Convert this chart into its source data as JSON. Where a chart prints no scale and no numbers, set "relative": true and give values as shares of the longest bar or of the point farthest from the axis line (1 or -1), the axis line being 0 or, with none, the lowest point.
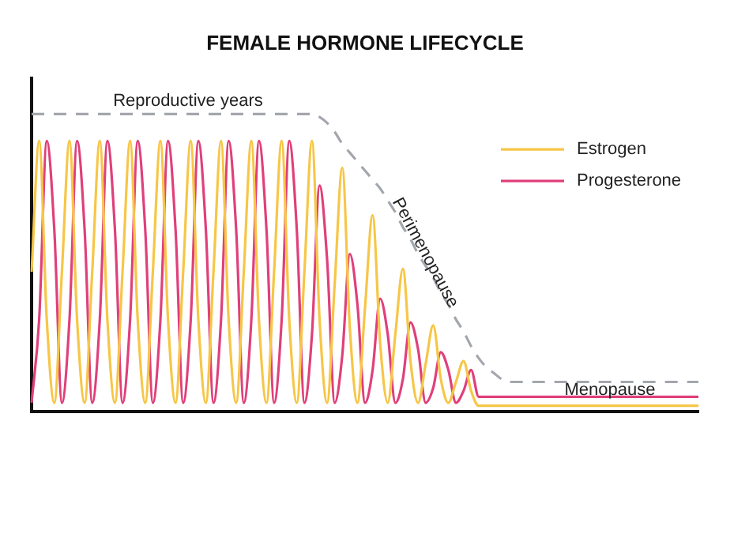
{
  "chart_data": {
    "type": "line",
    "title": "FEMALE HORMONE LIFECYCLE",
    "relative": true,
    "grid": false,
    "legend": "top right",
    "marker": "none",
    "annotations": [
      "Reproductive years",
      "Perimenopause",
      "Menopause"
    ],
    "categories": [
      null,
      null,
      null,
      null,
      null,
      null,
      null,
      null,
      null,
      null,
      null,
      null,
      null,
      null,
      null,
      null,
      null,
      null,
      null,
      null,
      null,
      null,
      null,
      null,
      null,
      null,
      null,
      null,
      null,
      null,
      null,
      null,
      null,
      null,
      null,
      null,
      null,
      null,
      null,
      null,
      null,
      null,
      null,
      null,
      null,
      null,
      null,
      null,
      null,
      null,
      null,
      null,
      null,
      null,
      null,
      null,
      null,
      null,
      null,
      null,
      null,
      null,
      null,
      null,
      null,
      null,
      null,
      null,
      null,
      null,
      null,
      null,
      null,
      null,
      null,
      null,
      null,
      null,
      null,
      null,
      null,
      null,
      null,
      null,
      null,
      null,
      null,
      null,
      null
    ],
    "series": [
      {
        "name": "Estrogen",
        "color": "#f7c647",
        "values": [
          0.47,
          0.91,
          0.31,
          0.03,
          0.47,
          0.91,
          0.31,
          0.03,
          0.47,
          0.91,
          0.31,
          0.03,
          0.47,
          0.91,
          0.31,
          0.03,
          0.47,
          0.91,
          0.31,
          0.03,
          0.47,
          0.91,
          0.31,
          0.03,
          0.47,
          0.91,
          0.31,
          0.03,
          0.47,
          0.91,
          0.31,
          0.03,
          0.47,
          0.91,
          0.31,
          0.03,
          0.47,
          0.91,
          0.31,
          0.03,
          0.43,
          0.82,
          0.28,
          0.03,
          0.35,
          0.66,
          0.23,
          0.03,
          0.26,
          0.48,
          0.17,
          0.03,
          0.16,
          0.29,
          0.11,
          0.03,
          0.1,
          0.17,
          0.07,
          0.02,
          0.02,
          0.02,
          0.02,
          0.02,
          0.02,
          0.02,
          0.02,
          0.02,
          0.02,
          0.02,
          0.02,
          0.02,
          0.02,
          0.02,
          0.02,
          0.02,
          0.02,
          0.02,
          0.02,
          0.02,
          0.02,
          0.02,
          0.02,
          0.02,
          0.02,
          0.02,
          0.02,
          0.02,
          0.02
        ]
      },
      {
        "name": "Progesterone",
        "color": "#e0407a",
        "values": [
          0.03,
          0.31,
          0.91,
          0.61,
          0.03,
          0.31,
          0.91,
          0.61,
          0.03,
          0.31,
          0.91,
          0.61,
          0.03,
          0.31,
          0.91,
          0.61,
          0.03,
          0.31,
          0.91,
          0.61,
          0.03,
          0.31,
          0.91,
          0.61,
          0.03,
          0.31,
          0.91,
          0.61,
          0.03,
          0.31,
          0.91,
          0.61,
          0.03,
          0.31,
          0.91,
          0.61,
          0.03,
          0.26,
          0.76,
          0.51,
          0.03,
          0.19,
          0.53,
          0.36,
          0.03,
          0.14,
          0.38,
          0.26,
          0.03,
          0.11,
          0.3,
          0.21,
          0.03,
          0.08,
          0.2,
          0.14,
          0.03,
          0.07,
          0.14,
          0.05,
          0.05,
          0.05,
          0.05,
          0.05,
          0.05,
          0.05,
          0.05,
          0.05,
          0.05,
          0.05,
          0.05,
          0.05,
          0.05,
          0.05,
          0.05,
          0.05,
          0.05,
          0.05,
          0.05,
          0.05,
          0.05,
          0.05,
          0.05,
          0.05,
          0.05,
          0.05,
          0.05,
          0.05,
          0.05
        ]
      },
      {
        "color": "#a3a7ad",
        "line_style": "dashed",
        "values": [
          1,
          1,
          1,
          1,
          1,
          1,
          1,
          1,
          1,
          1,
          1,
          1,
          1,
          1,
          1,
          1,
          1,
          1,
          1,
          1,
          1,
          1,
          1,
          1,
          1,
          1,
          1,
          1,
          1,
          1,
          1,
          1,
          1,
          1,
          1,
          1,
          1,
          1,
          0.99,
          0.97,
          0.94,
          0.9,
          0.87,
          0.84,
          0.81,
          0.78,
          0.75,
          0.71,
          0.67,
          0.62,
          0.58,
          0.53,
          0.49,
          0.45,
          0.4,
          0.36,
          0.31,
          0.27,
          0.22,
          0.18,
          0.15,
          0.13,
          0.11,
          0.1,
          0.1,
          0.1,
          0.1,
          0.1,
          0.1,
          0.1,
          0.1,
          0.1,
          0.1,
          0.1,
          0.1,
          0.1,
          0.1,
          0.1,
          0.1,
          0.1,
          0.1,
          0.1,
          0.1,
          0.1,
          0.1,
          0.1,
          0.1,
          0.1,
          0.1
        ]
      }
    ]
  }
}
